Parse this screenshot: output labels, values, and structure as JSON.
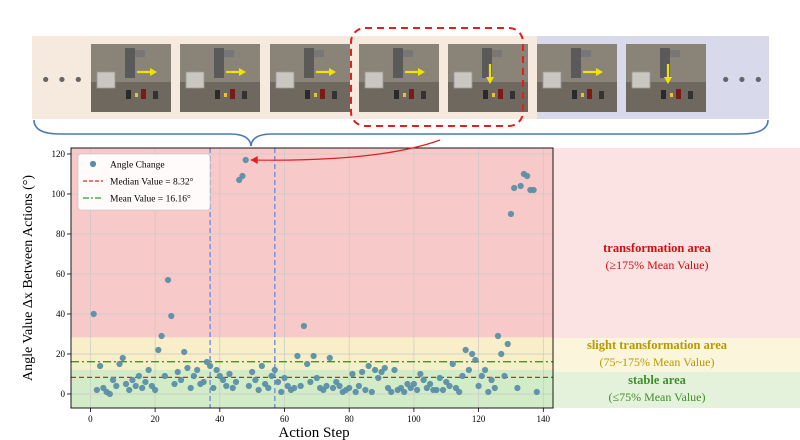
{
  "filmstrip": {
    "left_ellipsis": "• • •",
    "right_ellipsis": "• • •",
    "frames": [
      {
        "arrow": "right"
      },
      {
        "arrow": "right"
      },
      {
        "arrow": "right"
      },
      {
        "arrow": "right"
      },
      {
        "arrow": "down"
      },
      {
        "arrow": "right"
      },
      {
        "arrow": "down"
      }
    ],
    "highlighted_frames": [
      3,
      4
    ]
  },
  "zones": {
    "transformation": {
      "title": "transformation area",
      "subtitle": "(≥175% Mean Value)"
    },
    "slight": {
      "title": "slight transformation area",
      "subtitle": "(75~175% Mean Value)"
    },
    "stable": {
      "title": "stable area",
      "subtitle": "(≤75% Mean Value)"
    }
  },
  "colors": {
    "transformation_bg": "#f7c9c9",
    "slight_bg": "#f8efc8",
    "stable_bg": "#d3ecc8",
    "points": "#5b8fa8",
    "median_line": "#d62728",
    "mean_line": "#2ca02c",
    "marker_lines": "#6f8fd8",
    "zone_red": "#cc1111",
    "zone_yellow": "#b59a00",
    "zone_green": "#3f8f2a"
  },
  "chart_data": {
    "type": "scatter",
    "xlabel": "Action Step",
    "ylabel": "Angle Value Δx Between Actions  (°)",
    "xlim": [
      -6,
      143
    ],
    "ylim": [
      -7,
      123
    ],
    "xticks": [
      0,
      20,
      40,
      60,
      80,
      100,
      120,
      140
    ],
    "yticks": [
      0,
      20,
      40,
      60,
      80,
      100,
      120
    ],
    "grid": true,
    "legend_position": "top-left",
    "legend": [
      {
        "label": "Angle Change",
        "kind": "point"
      },
      {
        "label": "Median Value = 8.32°",
        "kind": "dashed"
      },
      {
        "label": "Mean Value = 16.16°",
        "kind": "dashdot"
      }
    ],
    "median": 8.32,
    "mean": 16.16,
    "bands": {
      "transformation_min": 28.3,
      "slight_min": 12.1
    },
    "vertical_markers": [
      37,
      57
    ],
    "highlighted_point": [
      48,
      117
    ],
    "x": [
      1,
      2,
      3,
      4,
      5,
      6,
      7,
      8,
      9,
      10,
      11,
      12,
      13,
      14,
      15,
      16,
      17,
      18,
      19,
      20,
      21,
      22,
      23,
      24,
      25,
      26,
      27,
      28,
      29,
      30,
      31,
      32,
      33,
      34,
      35,
      36,
      37,
      38,
      39,
      40,
      41,
      42,
      43,
      44,
      45,
      46,
      47,
      48,
      49,
      50,
      51,
      52,
      53,
      54,
      55,
      56,
      57,
      58,
      59,
      60,
      61,
      62,
      63,
      64,
      65,
      66,
      67,
      68,
      69,
      70,
      71,
      72,
      73,
      74,
      75,
      76,
      77,
      78,
      79,
      80,
      81,
      82,
      83,
      84,
      85,
      86,
      87,
      88,
      89,
      90,
      91,
      92,
      93,
      94,
      95,
      96,
      97,
      98,
      99,
      100,
      101,
      102,
      103,
      104,
      105,
      106,
      107,
      108,
      109,
      110,
      111,
      112,
      113,
      114,
      115,
      116,
      117,
      118,
      119,
      120,
      121,
      122,
      123,
      124,
      125,
      126,
      127,
      128,
      129,
      130,
      131,
      132,
      133,
      134,
      135,
      136,
      137,
      138
    ],
    "y": [
      40,
      2,
      14,
      3,
      1,
      0,
      7,
      4,
      15,
      18,
      5,
      2,
      7,
      4,
      9,
      3,
      6,
      12,
      4,
      2,
      22,
      29,
      9,
      57,
      39,
      5,
      11,
      7,
      21,
      13,
      3,
      9,
      12,
      5,
      6,
      16,
      14,
      3,
      12,
      9,
      7,
      4,
      10,
      3,
      6,
      107,
      109,
      117,
      4,
      11,
      7,
      2,
      14,
      5,
      3,
      9,
      12,
      6,
      1,
      8,
      4,
      2,
      3,
      19,
      4,
      34,
      15,
      6,
      19,
      8,
      3,
      2,
      4,
      18,
      3,
      6,
      4,
      1,
      2,
      3,
      10,
      1,
      4,
      11,
      2,
      14,
      1,
      12,
      8,
      11,
      13,
      3,
      1,
      12,
      2,
      3,
      1,
      5,
      3,
      5,
      2,
      10,
      7,
      3,
      5,
      2,
      2,
      8,
      2,
      6,
      4,
      15,
      3,
      1,
      9,
      22,
      12,
      20,
      17,
      4,
      9,
      12,
      1,
      7,
      3,
      29,
      20,
      9,
      25,
      90,
      103,
      3,
      104,
      110,
      109,
      102,
      102,
      1
    ]
  }
}
